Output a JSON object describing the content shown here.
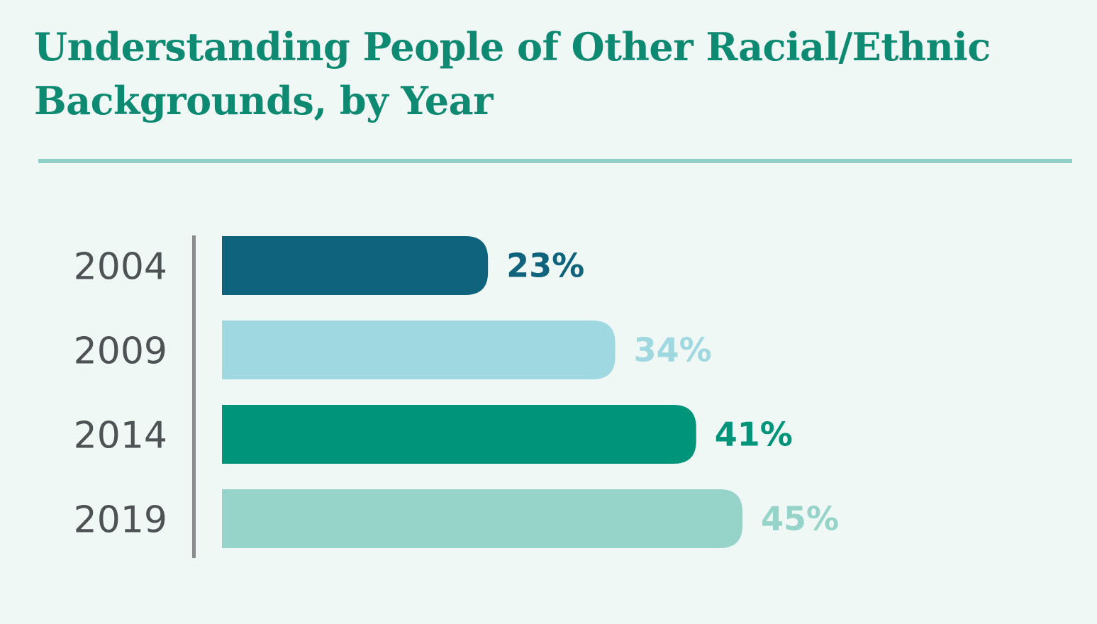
{
  "title": "Understanding People of Other Racial/Ethnic Backgrounds, by Year",
  "colors": {
    "background": "#eff8f5",
    "title": "#0e8a72",
    "rule": "#8fd0c6",
    "axis": "#8a8c8e",
    "year_label": "#4f5255"
  },
  "chart_data": {
    "type": "bar",
    "orientation": "horizontal",
    "title": "Understanding People of Other Racial/Ethnic Backgrounds, by Year",
    "categories": [
      "2004",
      "2009",
      "2014",
      "2019"
    ],
    "values": [
      23,
      34,
      41,
      45
    ],
    "value_labels": [
      "23%",
      "34%",
      "41%",
      "45%"
    ],
    "unit": "%",
    "bar_colors": [
      "#0f637c",
      "#9fd8e1",
      "#00957a",
      "#96d4c9"
    ],
    "label_colors": [
      "#0f637c",
      "#9fd8e1",
      "#00957a",
      "#96d4c9"
    ],
    "xlim": [
      0,
      100
    ],
    "grid": false,
    "legend": "none"
  }
}
